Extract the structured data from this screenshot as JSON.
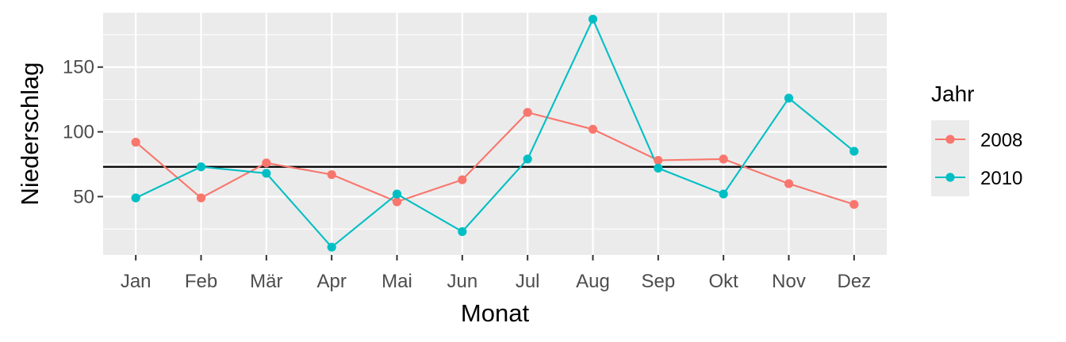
{
  "chart_data": {
    "type": "line",
    "xlabel": "Monat",
    "ylabel": "Niederschlag",
    "categories": [
      "Jan",
      "Feb",
      "Mär",
      "Apr",
      "Mai",
      "Jun",
      "Jul",
      "Aug",
      "Sep",
      "Okt",
      "Nov",
      "Dez"
    ],
    "ylim": [
      5,
      192
    ],
    "yticks": [
      50,
      100,
      150
    ],
    "grid": true,
    "reference_line": 73,
    "legend": {
      "title": "Jahr",
      "position": "right"
    },
    "series": [
      {
        "name": "2008",
        "color": "#F8766D",
        "values": [
          92,
          49,
          76,
          67,
          46,
          63,
          115,
          102,
          78,
          79,
          60,
          44
        ]
      },
      {
        "name": "2010",
        "color": "#00BFC4",
        "values": [
          49,
          73,
          68,
          11,
          52,
          23,
          79,
          187,
          72,
          52,
          126,
          85
        ]
      }
    ]
  }
}
